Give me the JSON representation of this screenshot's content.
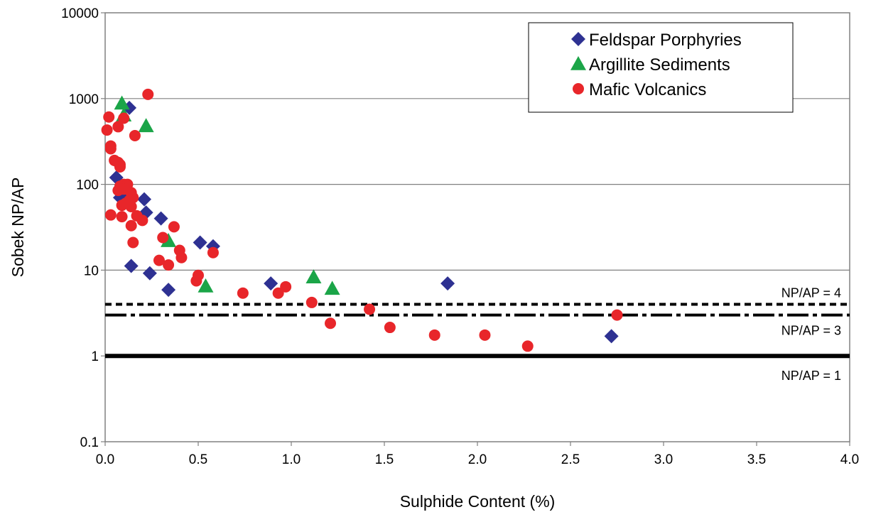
{
  "chart_data": {
    "type": "scatter",
    "xlabel": "Sulphide Content (%)",
    "ylabel": "Sobek NP/AP",
    "xlim": [
      0,
      4
    ],
    "ylim": [
      0.1,
      10000
    ],
    "y_scale": "log",
    "x_ticks": [
      "0.0",
      "0.5",
      "1.0",
      "1.5",
      "2.0",
      "2.5",
      "3.0",
      "3.5",
      "4.0"
    ],
    "y_ticks": [
      "0.1",
      "1",
      "10",
      "100",
      "1000",
      "10000"
    ],
    "grid": "horizontal",
    "legend_position": "top-right",
    "series": [
      {
        "name": "Feldspar Porphyries",
        "marker": "diamond",
        "color": "#2E3192",
        "points": [
          [
            0.13,
            780
          ],
          [
            0.06,
            120
          ],
          [
            0.08,
            70
          ],
          [
            0.1,
            65
          ],
          [
            0.12,
            75
          ],
          [
            0.14,
            73
          ],
          [
            0.21,
            67
          ],
          [
            0.22,
            47
          ],
          [
            0.3,
            40
          ],
          [
            0.14,
            11.2
          ],
          [
            0.24,
            9.2
          ],
          [
            0.34,
            5.9
          ],
          [
            0.51,
            21
          ],
          [
            0.58,
            19
          ],
          [
            0.89,
            7
          ],
          [
            1.84,
            7
          ],
          [
            2.72,
            1.7
          ]
        ]
      },
      {
        "name": "Argillite Sediments",
        "marker": "triangle",
        "color": "#1BA548",
        "points": [
          [
            0.09,
            880
          ],
          [
            0.1,
            640
          ],
          [
            0.22,
            480
          ],
          [
            0.34,
            22
          ],
          [
            0.54,
            6.5
          ],
          [
            1.12,
            8.3
          ],
          [
            1.22,
            6.1
          ]
        ]
      },
      {
        "name": "Mafic Volcanics",
        "marker": "circle",
        "color": "#E8262A",
        "points": [
          [
            0.23,
            1120
          ],
          [
            0.02,
            610
          ],
          [
            0.1,
            590
          ],
          [
            0.07,
            470
          ],
          [
            0.01,
            430
          ],
          [
            0.16,
            370
          ],
          [
            0.03,
            280
          ],
          [
            0.03,
            260
          ],
          [
            0.05,
            190
          ],
          [
            0.07,
            180
          ],
          [
            0.08,
            170
          ],
          [
            0.08,
            160
          ],
          [
            0.1,
            100
          ],
          [
            0.12,
            100
          ],
          [
            0.08,
            95
          ],
          [
            0.07,
            85
          ],
          [
            0.1,
            88
          ],
          [
            0.14,
            80
          ],
          [
            0.15,
            70
          ],
          [
            0.13,
            65
          ],
          [
            0.11,
            60
          ],
          [
            0.09,
            57
          ],
          [
            0.14,
            55
          ],
          [
            0.03,
            44
          ],
          [
            0.09,
            42
          ],
          [
            0.17,
            43
          ],
          [
            0.2,
            38
          ],
          [
            0.37,
            32
          ],
          [
            0.14,
            33
          ],
          [
            0.31,
            24
          ],
          [
            0.15,
            21
          ],
          [
            0.4,
            17
          ],
          [
            0.41,
            14
          ],
          [
            0.58,
            16
          ],
          [
            0.29,
            13
          ],
          [
            0.34,
            11.5
          ],
          [
            0.5,
            8.7
          ],
          [
            0.49,
            7.5
          ],
          [
            0.74,
            5.4
          ],
          [
            0.93,
            5.4
          ],
          [
            0.97,
            6.4
          ],
          [
            1.11,
            4.2
          ],
          [
            1.42,
            3.5
          ],
          [
            1.21,
            2.4
          ],
          [
            1.53,
            2.15
          ],
          [
            1.77,
            1.75
          ],
          [
            2.04,
            1.75
          ],
          [
            2.27,
            1.3
          ],
          [
            2.75,
            3
          ]
        ]
      }
    ],
    "reference_lines": [
      {
        "label": "NP/AP = 4",
        "y": 4,
        "style": "dashed"
      },
      {
        "label": "NP/AP = 3",
        "y": 3,
        "style": "dash-dot"
      },
      {
        "label": "NP/AP = 1",
        "y": 1,
        "style": "solid"
      }
    ]
  }
}
